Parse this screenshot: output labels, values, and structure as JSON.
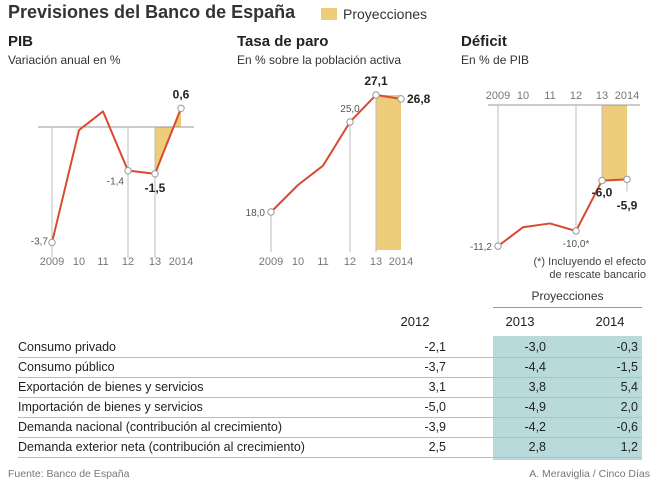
{
  "header": {
    "title": "Previsiones del Banco de España",
    "legend_label": "Proyecciones",
    "legend_color": "#EDCC7A"
  },
  "colors": {
    "line": "#D94A30",
    "projection": "#EDCC7A",
    "table_projection": "#B8DADB",
    "axis": "#999999"
  },
  "chart_data": [
    {
      "type": "line",
      "title": "PIB",
      "subtitle": "Variación anual en %",
      "x": [
        "2009",
        "10",
        "11",
        "12",
        "13",
        "2014"
      ],
      "values": [
        -3.7,
        -0.1,
        0.5,
        -1.4,
        -1.5,
        0.6
      ],
      "labels": [
        "-3,7",
        "",
        "",
        "-1,4",
        "-1,5",
        "0,6"
      ],
      "projection_from": "12",
      "ylim": [
        -3.7,
        0.6
      ]
    },
    {
      "type": "line",
      "title": "Tasa de paro",
      "subtitle": "En % sobre la población activa",
      "x": [
        "2009",
        "10",
        "11",
        "12",
        "13",
        "2014"
      ],
      "values": [
        18.0,
        20.1,
        21.6,
        25.0,
        27.1,
        26.8
      ],
      "labels": [
        "18,0",
        "",
        "",
        "25,0",
        "27,1",
        "26,8"
      ],
      "projection_from": "13",
      "ylim": [
        18.0,
        27.1
      ]
    },
    {
      "type": "line",
      "title": "Déficit",
      "subtitle": "En % de PIB",
      "x": [
        "2009",
        "10",
        "11",
        "12",
        "13",
        "2014"
      ],
      "values": [
        -11.2,
        -9.7,
        -9.4,
        -10.0,
        -6.0,
        -5.9
      ],
      "labels": [
        "-11,2",
        "",
        "",
        "-10,0*",
        "-6,0",
        "-5,9"
      ],
      "projection_from": "12",
      "ylim": [
        -11.2,
        0
      ],
      "note": [
        "(*) Incluyendo el efecto",
        "de rescate bancario"
      ]
    }
  ],
  "table": {
    "projections_header": "Proyecciones",
    "columns": [
      "2012",
      "2013",
      "2014"
    ],
    "rows": [
      {
        "label": "Consumo privado",
        "values": [
          "-2,1",
          "-3,0",
          "-0,3"
        ]
      },
      {
        "label": "Consumo público",
        "values": [
          "-3,7",
          "-4,4",
          "-1,5"
        ]
      },
      {
        "label": "Exportación de bienes y servicios",
        "values": [
          "3,1",
          "3,8",
          "5,4"
        ]
      },
      {
        "label": "Importación de bienes y servicios",
        "values": [
          "-5,0",
          "-4,9",
          "2,0"
        ]
      },
      {
        "label": "Demanda nacional (contribución al crecimiento)",
        "values": [
          "-3,9",
          "-4,2",
          "-0,6"
        ]
      },
      {
        "label": "Demanda exterior neta (contribución al crecimiento)",
        "values": [
          "2,5",
          "2,8",
          "1,2"
        ]
      }
    ]
  },
  "footer": {
    "source": "Fuente: Banco de España",
    "credit": "A. Meraviglia / Cinco Días"
  }
}
